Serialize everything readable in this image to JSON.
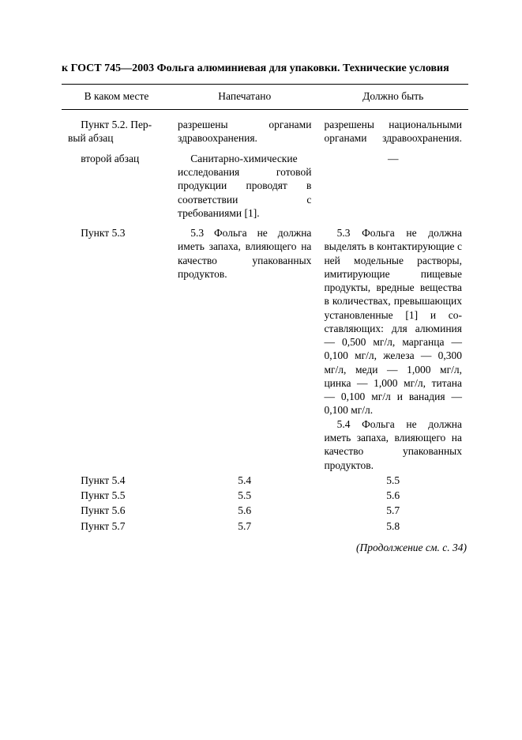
{
  "title": "к ГОСТ 745—2003 Фольга алюминиевая для упаковки. Технические условия",
  "headers": {
    "where": "В каком месте",
    "printed": "Напечатано",
    "should": "Должно быть"
  },
  "rows": {
    "r1": {
      "where_l1": "Пункт 5.2. Пер-",
      "where_l2": "вый абзац",
      "printed": "разрешены органами здравоохранения.",
      "should": "разрешены нацио­нальными органами здра­воохранения."
    },
    "r2": {
      "where": "второй абзац",
      "printed": "Санитарно-хими­ческие исследования готовой продукции проводят в соответ­ствии с требованиями [1].",
      "should": "—"
    },
    "r3": {
      "where": "Пункт 5.3",
      "printed": "5.3 Фольга не долж­на иметь запаха, влия­ющего на качество упа­кованных продуктов.",
      "should_p1": "5.3 Фольга не должна выделять в контактирую­щие с ней модельные ра­створы, имитирующие пищевые продукты, вредные вещества в коли­чествах, превышающих установленные [1] и со­ставляющих: для алюми­ния — 0,500 мг/л, мар­ганца — 0,100 мг/л, же­леза — 0,300 мг/л, меди — 1,000 мг/л, цинка — 1,000 мг/л, титана — 0,100 мг/л и ванадия — 0,100 мг/л.",
      "should_p2": "5.4 Фольга не должна иметь запаха, влияюще­го на качество упакован­ных продуктов."
    },
    "renum": [
      {
        "where": "Пункт 5.4",
        "printed": "5.4",
        "should": "5.5"
      },
      {
        "where": "Пункт 5.5",
        "printed": "5.5",
        "should": "5.6"
      },
      {
        "where": "Пункт 5.6",
        "printed": "5.6",
        "should": "5.7"
      },
      {
        "where": "Пункт 5.7",
        "printed": "5.7",
        "should": "5.8"
      }
    ]
  },
  "continuation": "(Продолжение см. с. 34)",
  "colors": {
    "text": "#000000",
    "bg": "#ffffff",
    "rule": "#000000"
  }
}
